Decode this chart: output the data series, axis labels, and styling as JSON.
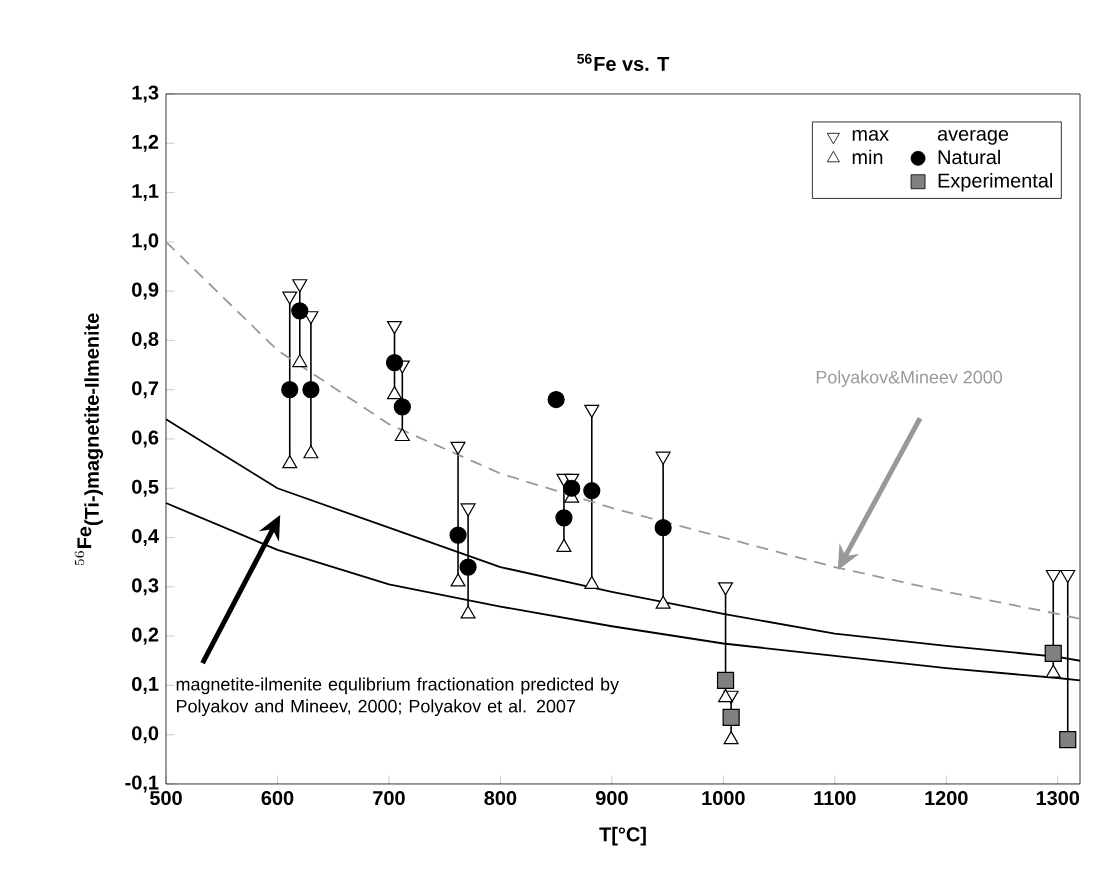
{
  "chart_data": {
    "type": "scatter",
    "title": "$^{56}$Fe vs. T",
    "xlabel": "T[°C]",
    "ylabel": "^{56}\\mathbf{Fe}_{\\mbox{\\bfseries (Ti-)magnetite-Ilmenite}}",
    "legend_title": "average",
    "legend": "top right",
    "xlim": [
      500,
      1320
    ],
    "ylim": [
      -0.1,
      1.3
    ],
    "xticks": [
      500,
      600,
      700,
      800,
      900,
      1000,
      1100,
      1200,
      1300
    ],
    "yticks": [
      {
        "value": -0.1,
        "label": "-0,1"
      },
      {
        "value": 0,
        "label": "0,0"
      },
      {
        "value": 0.1,
        "label": "0,1"
      },
      {
        "value": 0.2,
        "label": "0,2"
      },
      {
        "value": 0.3,
        "label": "0,3"
      },
      {
        "value": 0.4,
        "label": "0,4"
      },
      {
        "value": 0.5,
        "label": "0,5"
      },
      {
        "value": 0.6,
        "label": "0,6"
      },
      {
        "value": 0.7,
        "label": "0,7"
      },
      {
        "value": 0.8,
        "label": "0,8"
      },
      {
        "value": 0.9,
        "label": "0,9"
      },
      {
        "value": 1.0,
        "label": "1,0"
      },
      {
        "value": 1.1,
        "label": "1,1"
      },
      {
        "value": 1.2,
        "label": "1,2"
      },
      {
        "value": 1.3,
        "label": "1,3"
      }
    ],
    "series": [
      {
        "name": "max",
        "marker": "triangle-down",
        "color": "#ffffff",
        "x": [
          611,
          620,
          630,
          705,
          712,
          762,
          771,
          857,
          864,
          882,
          946,
          1002,
          1007,
          1296,
          1309
        ],
        "values": [
          0.89,
          0.915,
          0.85,
          0.83,
          0.75,
          0.585,
          0.46,
          0.52,
          0.52,
          0.66,
          0.565,
          0.3,
          0.08,
          0.325,
          0.325
        ]
      },
      {
        "name": "min",
        "marker": "triangle",
        "color": "#ffffff",
        "x": [
          611,
          620,
          630,
          705,
          712,
          762,
          771,
          857,
          864,
          882,
          946,
          1002,
          1007,
          1296
        ],
        "values": [
          0.55,
          0.755,
          0.57,
          0.69,
          0.605,
          0.31,
          0.245,
          0.38,
          0.48,
          0.305,
          0.265,
          0.075,
          -0.01,
          0.125
        ]
      },
      {
        "name": "Natural",
        "marker": "circle",
        "color": "#000000",
        "x": [
          611,
          620,
          630,
          705,
          712,
          762,
          771,
          850,
          857,
          864,
          882,
          946
        ],
        "values": [
          0.7,
          0.86,
          0.7,
          0.755,
          0.665,
          0.405,
          0.34,
          0.68,
          0.44,
          0.5,
          0.495,
          0.42
        ],
        "errors": [
          [
            0.55,
            0.89
          ],
          [
            0.755,
            0.915
          ],
          [
            0.57,
            0.85
          ],
          [
            0.69,
            0.83
          ],
          [
            0.605,
            0.75
          ],
          [
            0.31,
            0.585
          ],
          [
            0.245,
            0.46
          ],
          null,
          [
            0.38,
            0.52
          ],
          [
            0.48,
            0.52
          ],
          [
            0.305,
            0.66
          ],
          [
            0.265,
            0.565
          ]
        ]
      },
      {
        "name": "Experimental",
        "marker": "square",
        "color": "#808080",
        "x": [
          1002,
          1007,
          1296,
          1309
        ],
        "values": [
          0.11,
          0.035,
          0.165,
          -0.01
        ],
        "errors": [
          [
            0.075,
            0.3
          ],
          [
            -0.01,
            0.08
          ],
          [
            0.125,
            0.325
          ],
          [
            -0.01,
            0.325
          ]
        ]
      },
      {
        "type": "line",
        "line_style": "dashed",
        "color": "#999999",
        "x": [
          500,
          600,
          700,
          800,
          900,
          1000,
          1100,
          1200,
          1300,
          1320
        ],
        "values": [
          1.0,
          0.78,
          0.63,
          0.53,
          0.46,
          0.4,
          0.34,
          0.29,
          0.245,
          0.235
        ]
      },
      {
        "type": "line",
        "line_style": "solid",
        "color": "#000000",
        "x": [
          500,
          600,
          700,
          800,
          900,
          1000,
          1100,
          1200,
          1300,
          1320
        ],
        "values": [
          0.64,
          0.5,
          0.42,
          0.34,
          0.29,
          0.245,
          0.205,
          0.18,
          0.158,
          0.15
        ]
      },
      {
        "type": "line",
        "line_style": "solid",
        "color": "#000000",
        "x": [
          500,
          600,
          700,
          800,
          900,
          1000,
          1100,
          1200,
          1300,
          1320
        ],
        "values": [
          0.47,
          0.375,
          0.305,
          0.26,
          0.22,
          0.185,
          0.16,
          0.135,
          0.115,
          0.11
        ]
      }
    ],
    "annotations": [
      "Polyakov&Mineev 2000",
      "magnetite-ilmenite equlibrium fractionation predicted by Polyakov and Mineev, 2000; Polyakov et al. 2007"
    ]
  }
}
